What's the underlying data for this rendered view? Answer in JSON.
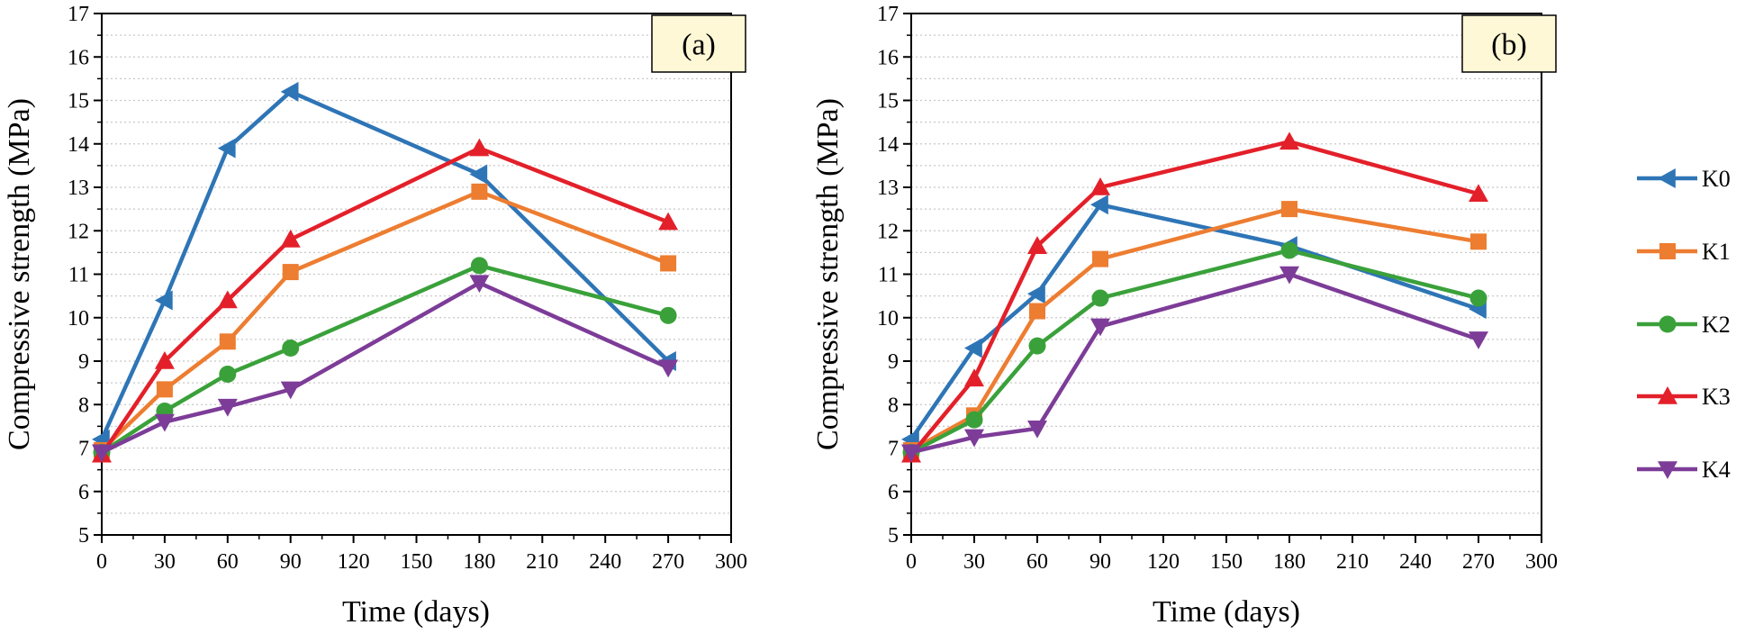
{
  "chart_data": [
    {
      "type": "line",
      "panel_label": "(a)",
      "xlabel": "Time (days)",
      "ylabel": "Compressive strength (MPa)",
      "xlim": [
        0,
        300
      ],
      "ylim": [
        5,
        17
      ],
      "xticks": [
        0,
        30,
        60,
        90,
        120,
        150,
        180,
        210,
        240,
        270,
        300
      ],
      "yticks": [
        5,
        6,
        7,
        8,
        9,
        10,
        11,
        12,
        13,
        14,
        15,
        16,
        17
      ],
      "grid": "horizontal dotted",
      "x": [
        0,
        30,
        60,
        90,
        180,
        270
      ],
      "series": [
        {
          "name": "K0",
          "values": [
            7.2,
            10.4,
            13.9,
            15.2,
            13.3,
            9.0
          ]
        },
        {
          "name": "K1",
          "values": [
            6.95,
            8.35,
            9.45,
            11.05,
            12.9,
            11.25
          ]
        },
        {
          "name": "K2",
          "values": [
            6.9,
            7.85,
            8.7,
            9.3,
            11.2,
            10.05
          ]
        },
        {
          "name": "K3",
          "values": [
            6.85,
            9.0,
            10.4,
            11.8,
            13.9,
            12.2
          ]
        },
        {
          "name": "K4",
          "values": [
            6.9,
            7.6,
            7.95,
            8.35,
            10.8,
            8.85
          ]
        }
      ]
    },
    {
      "type": "line",
      "panel_label": "(b)",
      "xlabel": "Time (days)",
      "ylabel": "Compressive strength (MPa)",
      "xlim": [
        0,
        300
      ],
      "ylim": [
        5,
        17
      ],
      "xticks": [
        0,
        30,
        60,
        90,
        120,
        150,
        180,
        210,
        240,
        270,
        300
      ],
      "yticks": [
        5,
        6,
        7,
        8,
        9,
        10,
        11,
        12,
        13,
        14,
        15,
        16,
        17
      ],
      "grid": "horizontal dotted",
      "x": [
        0,
        30,
        60,
        90,
        180,
        270
      ],
      "series": [
        {
          "name": "K0",
          "values": [
            7.2,
            9.3,
            10.55,
            12.6,
            11.65,
            10.2
          ]
        },
        {
          "name": "K1",
          "values": [
            6.95,
            7.75,
            10.15,
            11.35,
            12.5,
            11.75
          ]
        },
        {
          "name": "K2",
          "values": [
            6.9,
            7.65,
            9.35,
            10.45,
            11.55,
            10.45
          ]
        },
        {
          "name": "K3",
          "values": [
            6.85,
            8.6,
            11.65,
            13.0,
            14.05,
            12.85
          ]
        },
        {
          "name": "K4",
          "values": [
            6.9,
            7.25,
            7.45,
            9.8,
            11.0,
            9.5
          ]
        }
      ]
    }
  ],
  "legend": {
    "placement": "right",
    "items": [
      {
        "name": "K0",
        "color": "#2e75b6",
        "marker": "triangle-left"
      },
      {
        "name": "K1",
        "color": "#ed7d31",
        "marker": "square"
      },
      {
        "name": "K2",
        "color": "#3aa13a",
        "marker": "circle"
      },
      {
        "name": "K3",
        "color": "#e3202a",
        "marker": "triangle-up"
      },
      {
        "name": "K4",
        "color": "#7d3c98",
        "marker": "triangle-down"
      }
    ]
  },
  "styles": {
    "tag_background": "#fff8d6",
    "grid_color": "#c8c8c8",
    "axis_color": "#000000"
  }
}
